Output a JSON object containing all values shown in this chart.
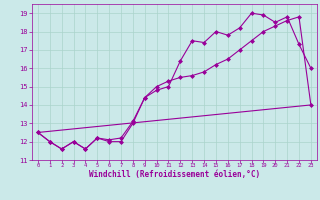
{
  "title": "",
  "xlabel": "Windchill (Refroidissement éolien,°C)",
  "ylabel": "",
  "bg_color": "#cbe9e9",
  "line_color": "#990099",
  "x_ticks": [
    0,
    1,
    2,
    3,
    4,
    5,
    6,
    7,
    8,
    9,
    10,
    11,
    12,
    13,
    14,
    15,
    16,
    17,
    18,
    19,
    20,
    21,
    22,
    23
  ],
  "y_ticks": [
    11,
    12,
    13,
    14,
    15,
    16,
    17,
    18,
    19
  ],
  "ylim": [
    11,
    19.5
  ],
  "xlim": [
    -0.5,
    23.5
  ],
  "line1_x": [
    0,
    1,
    2,
    3,
    4,
    5,
    6,
    7,
    8,
    9,
    10,
    11,
    12,
    13,
    14,
    15,
    16,
    17,
    18,
    19,
    20,
    21,
    22,
    23
  ],
  "line1_y": [
    12.5,
    12.0,
    11.6,
    12.0,
    11.6,
    12.2,
    12.0,
    12.0,
    13.0,
    14.4,
    14.8,
    15.0,
    16.4,
    17.5,
    17.4,
    18.0,
    17.8,
    18.2,
    19.0,
    18.9,
    18.5,
    18.8,
    17.3,
    16.0
  ],
  "line2_x": [
    0,
    1,
    2,
    3,
    4,
    5,
    6,
    7,
    8,
    9,
    10,
    11,
    12,
    13,
    14,
    15,
    16,
    17,
    18,
    19,
    20,
    21,
    22,
    23
  ],
  "line2_y": [
    12.5,
    12.0,
    11.6,
    12.0,
    11.6,
    12.2,
    12.1,
    12.2,
    13.1,
    14.4,
    15.0,
    15.3,
    15.5,
    15.6,
    15.8,
    16.2,
    16.5,
    17.0,
    17.5,
    18.0,
    18.3,
    18.6,
    18.8,
    14.0
  ],
  "line3_x": [
    0,
    23
  ],
  "line3_y": [
    12.5,
    14.0
  ],
  "grid_color": "#aad4cc",
  "font_color": "#990099",
  "marker": "D",
  "markersize": 2.0,
  "linewidth": 0.8
}
